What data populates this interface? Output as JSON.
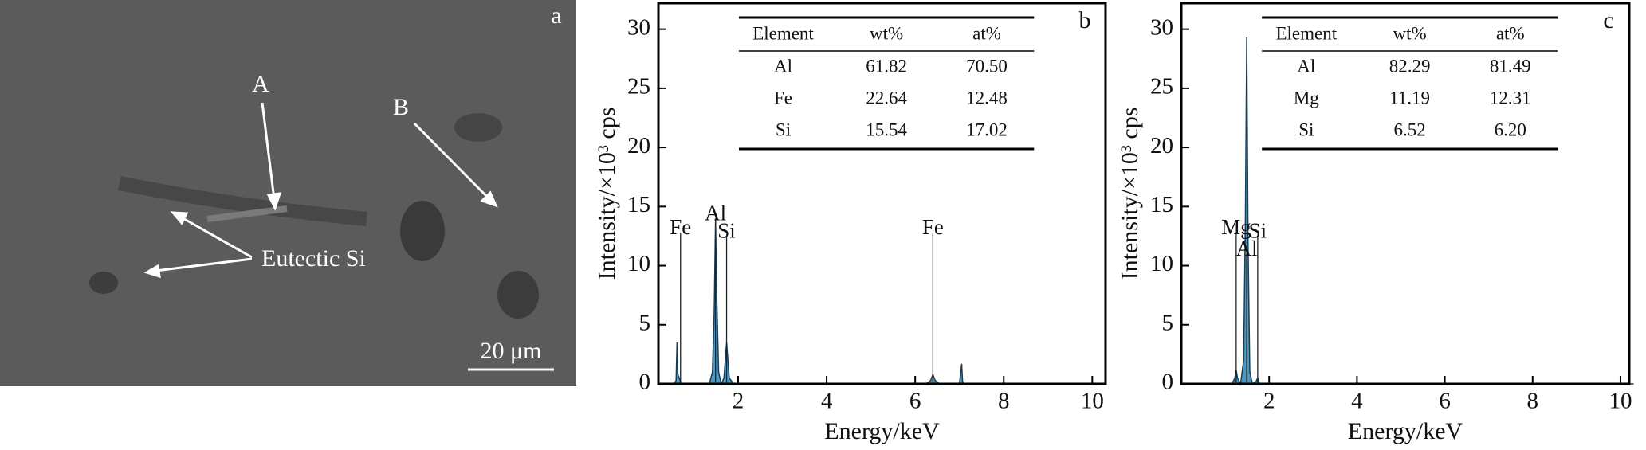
{
  "sem_image": {
    "panel_label": "a",
    "labels": [
      "A",
      "B",
      "Eutectic Si"
    ],
    "scale_bar": "20 μm"
  },
  "chart_data": [
    {
      "type": "area",
      "panel_label": "b",
      "x_label": "Energy/keV",
      "y_label": "Intensity/×10³ cps",
      "x": [
        0.2,
        0.55,
        0.6,
        0.62,
        0.64,
        0.68,
        0.72,
        1.35,
        1.42,
        1.46,
        1.49,
        1.52,
        1.56,
        1.62,
        1.68,
        1.72,
        1.74,
        1.76,
        1.8,
        1.9,
        6.25,
        6.35,
        6.4,
        6.45,
        6.55,
        7.0,
        7.05,
        7.07,
        7.1,
        10.3
      ],
      "values": [
        0,
        0,
        0.3,
        3.5,
        0.8,
        0.4,
        0,
        0,
        1,
        6,
        13.8,
        7,
        1,
        0,
        0.5,
        2.5,
        3.5,
        2.5,
        0.5,
        0,
        0,
        0.3,
        0.8,
        0.3,
        0,
        0,
        1.7,
        0.2,
        0,
        0
      ],
      "color": "#2f86b4",
      "xlim": [
        0.2,
        10.3
      ],
      "ylim": [
        0,
        32.2
      ],
      "xticks": [
        2,
        4,
        6,
        8,
        10
      ],
      "yticks": [
        0,
        5,
        10,
        15,
        20,
        25,
        30
      ],
      "annotations": [
        {
          "text": "Fe",
          "x": 0.7,
          "y": 12.8
        },
        {
          "text": "Al",
          "x": 1.49,
          "y": 14
        },
        {
          "text": "Si",
          "x": 1.74,
          "y": 12.5
        },
        {
          "text": "Fe",
          "x": 6.4,
          "y": 12.8
        }
      ],
      "table": {
        "columns": [
          "Element",
          "wt%",
          "at%"
        ],
        "rows": [
          [
            "Al",
            "61.82",
            "70.50"
          ],
          [
            "Fe",
            "22.64",
            "12.48"
          ],
          [
            "Si",
            "15.54",
            "17.02"
          ]
        ]
      }
    },
    {
      "type": "area",
      "panel_label": "c",
      "x_label": "Energy/keV",
      "y_label": "Intensity/×10³ cps",
      "x": [
        0.2,
        1.15,
        1.22,
        1.25,
        1.28,
        1.35,
        1.42,
        1.46,
        1.49,
        1.52,
        1.56,
        1.62,
        1.7,
        1.74,
        1.78,
        10.3
      ],
      "values": [
        0,
        0,
        0.5,
        1.2,
        0.5,
        0,
        2,
        14,
        29.3,
        12,
        1,
        0,
        0.2,
        0.5,
        0,
        0
      ],
      "color": "#2f86b4",
      "xlim": [
        0,
        10.2
      ],
      "ylim": [
        0,
        32.2
      ],
      "xticks": [
        2,
        4,
        6,
        8,
        10
      ],
      "yticks": [
        0,
        5,
        10,
        15,
        20,
        25,
        30
      ],
      "annotations": [
        {
          "text": "Mg",
          "x": 1.25,
          "y": 12.8
        },
        {
          "text": "Al",
          "x": 1.49,
          "y": 11
        },
        {
          "text": "Si",
          "x": 1.74,
          "y": 12.5
        }
      ],
      "table": {
        "columns": [
          "Element",
          "wt%",
          "at%"
        ],
        "rows": [
          [
            "Al",
            "82.29",
            "81.49"
          ],
          [
            "Mg",
            "11.19",
            "12.31"
          ],
          [
            "Si",
            "6.52",
            "6.20"
          ]
        ]
      }
    }
  ]
}
